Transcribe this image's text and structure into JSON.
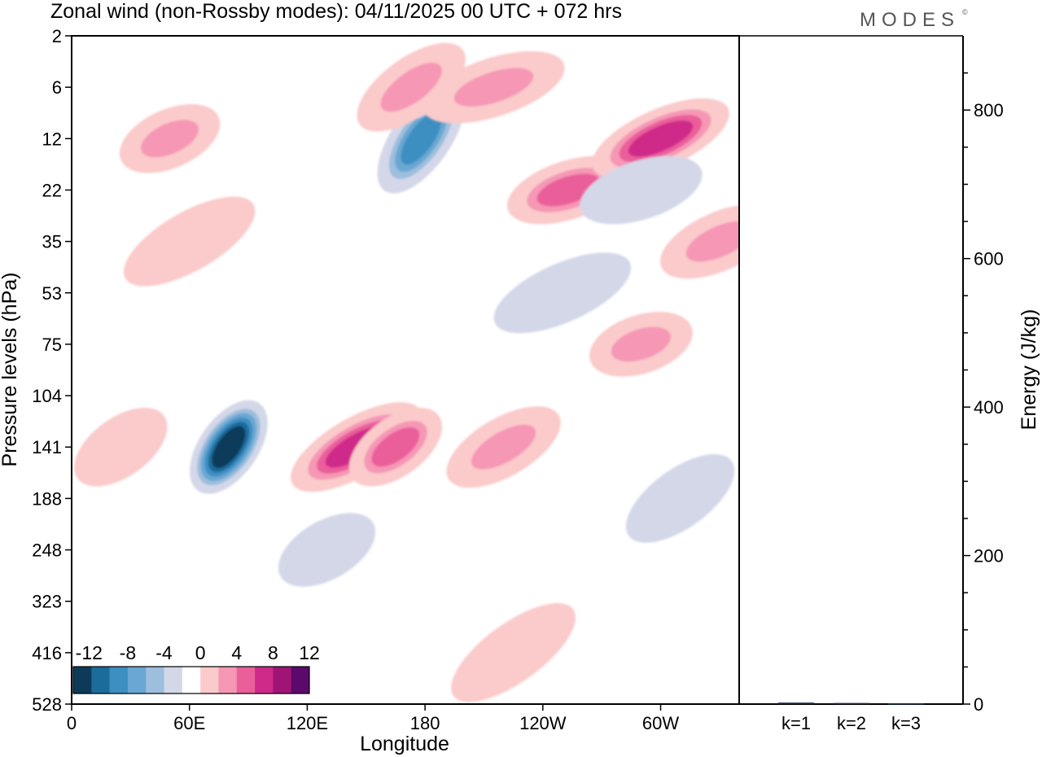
{
  "title": "Zonal wind (non-Rossby modes):  04/11/2025  00 UTC  + 072 hrs",
  "logo": "MODES",
  "colors": {
    "scale": [
      "#0e3a5a",
      "#1b6b9b",
      "#3d8fc2",
      "#6aa7d2",
      "#9dbedd",
      "#d3d7e8",
      "#ffffff",
      "#fbcaca",
      "#f597b5",
      "#ea5f9a",
      "#cf2a89",
      "#a01476",
      "#5b0a6c"
    ],
    "axis": "#000000",
    "bar": "#1b2a4a"
  },
  "chart_data": [
    {
      "type": "heatmap",
      "title": "Zonal wind (non-Rossby modes):  04/11/2025  00 UTC  + 072 hrs",
      "xlabel": "Longitude",
      "ylabel": "Pressure levels (hPa)",
      "x_ticks": [
        "0",
        "60E",
        "120E",
        "180",
        "120W",
        "60W"
      ],
      "x_tick_values": [
        0,
        60,
        120,
        180,
        240,
        300
      ],
      "xlim": [
        0,
        340
      ],
      "y_ticks": [
        "2",
        "6",
        "12",
        "22",
        "35",
        "53",
        "75",
        "104",
        "141",
        "188",
        "248",
        "323",
        "416",
        "528"
      ],
      "colorbar_labels": [
        "-12",
        "-8",
        "-4",
        "0",
        "4",
        "8",
        "12"
      ],
      "contour_levels": [
        -14,
        -12,
        -10,
        -8,
        -6,
        -4,
        -2,
        2,
        4,
        6,
        8,
        10,
        12,
        14
      ],
      "features": [
        {
          "lon": 80,
          "level": 141,
          "value": -14
        },
        {
          "lon": 178,
          "level": 12,
          "value": -10
        },
        {
          "lon": 145,
          "level": 141,
          "value": 10
        },
        {
          "lon": 165,
          "level": 141,
          "value": 8
        },
        {
          "lon": 253,
          "level": 22,
          "value": 8
        },
        {
          "lon": 300,
          "level": 12,
          "value": 10
        },
        {
          "lon": 175,
          "level": 6,
          "value": -6
        },
        {
          "lon": 173,
          "level": 6,
          "value": 6
        },
        {
          "lon": 215,
          "level": 6,
          "value": 6
        },
        {
          "lon": 50,
          "level": 12,
          "value": 6
        },
        {
          "lon": 220,
          "level": 141,
          "value": 6
        },
        {
          "lon": 225,
          "level": 416,
          "value": 4
        },
        {
          "lon": 290,
          "level": 75,
          "value": 6
        },
        {
          "lon": 330,
          "level": 35,
          "value": 6
        },
        {
          "lon": 60,
          "level": 35,
          "value": 4
        },
        {
          "lon": 25,
          "level": 141,
          "value": 4
        },
        {
          "lon": 290,
          "level": 22,
          "value": -4
        },
        {
          "lon": 250,
          "level": 53,
          "value": -4
        },
        {
          "lon": 130,
          "level": 248,
          "value": -2
        },
        {
          "lon": 310,
          "level": 188,
          "value": -2
        }
      ]
    },
    {
      "type": "bar",
      "categories": [
        "k=1",
        "k=2",
        "k=3"
      ],
      "values": [
        2,
        1.5,
        1
      ],
      "ylabel": "Energy (J/kg)",
      "ylim": [
        0,
        900
      ],
      "y_ticks": [
        "0",
        "200",
        "400",
        "600",
        "800"
      ],
      "y_tick_values": [
        0,
        200,
        400,
        600,
        800
      ]
    }
  ]
}
